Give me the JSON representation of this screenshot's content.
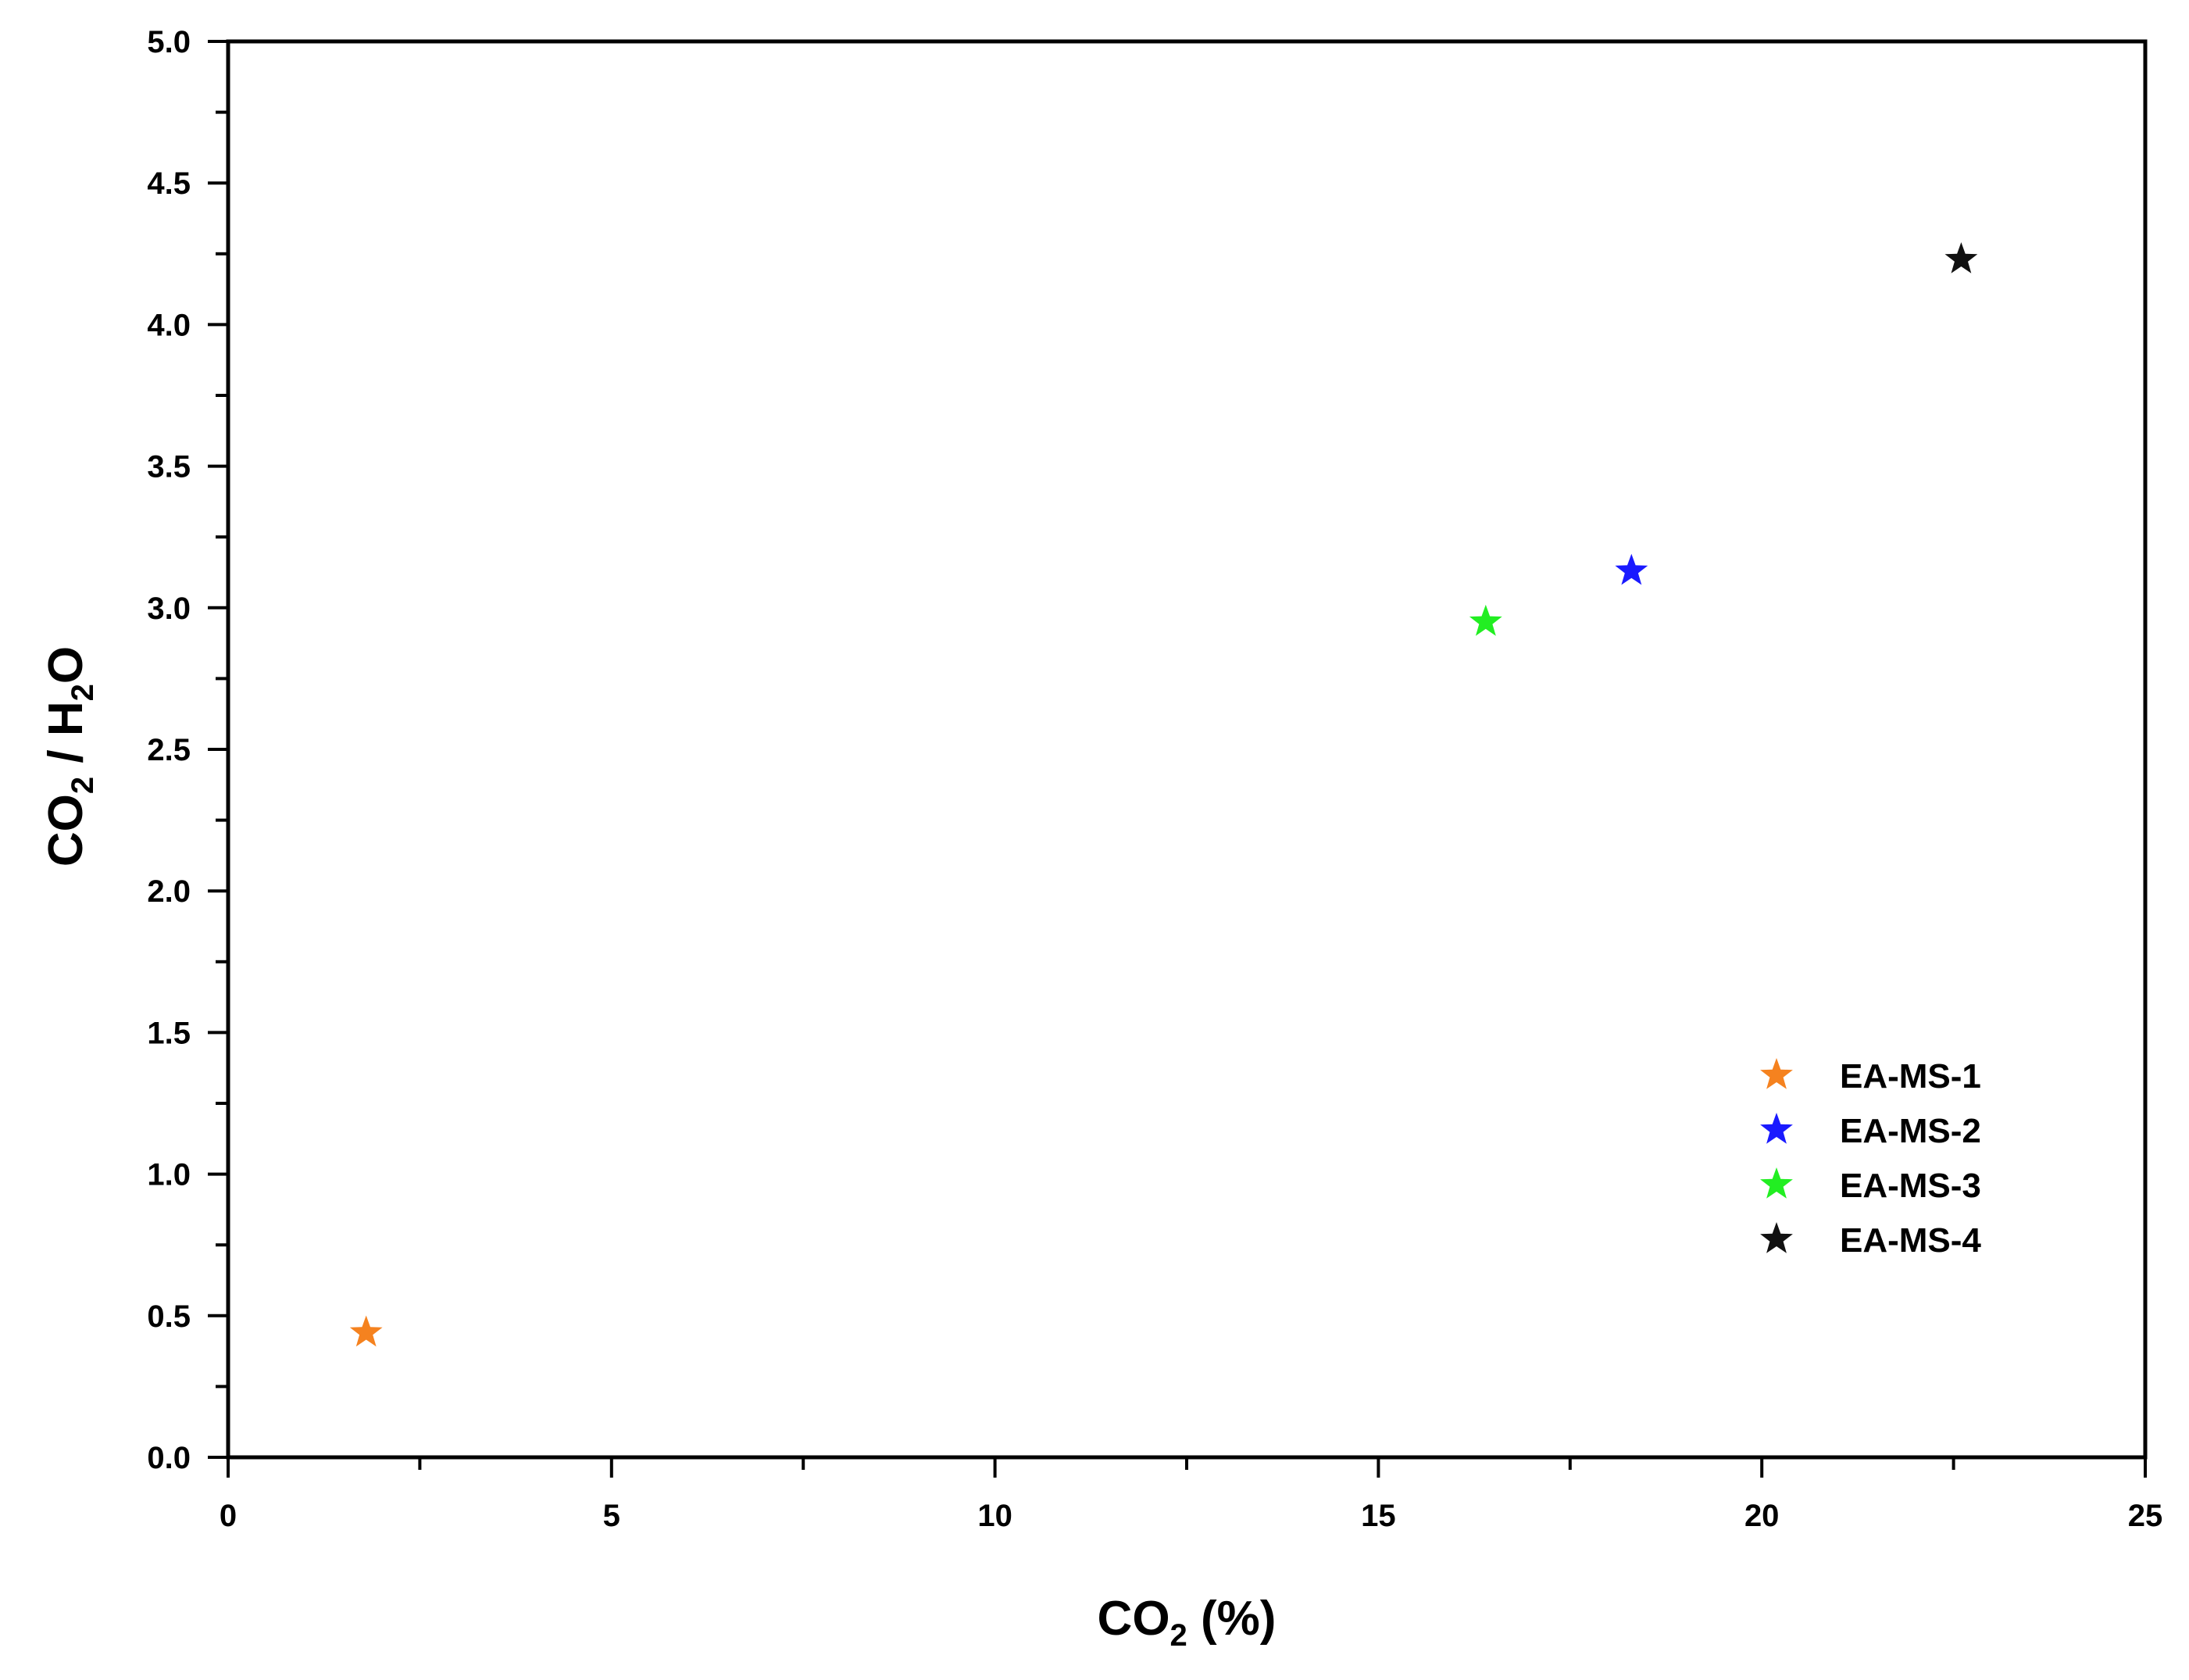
{
  "chart_data": {
    "type": "scatter",
    "xlabel": {
      "main": "CO",
      "sub": "2",
      "suffix": " (%)"
    },
    "ylabel": {
      "part1": "CO",
      "sub1": "2",
      "part2": " / H",
      "sub2": "2",
      "part3": "O"
    },
    "xlim": [
      0,
      25
    ],
    "ylim": [
      0,
      5
    ],
    "x_ticks": [
      "0",
      "5",
      "10",
      "15",
      "20",
      "25"
    ],
    "y_ticks": [
      "0.0",
      "0.5",
      "1.0",
      "1.5",
      "2.0",
      "2.5",
      "3.0",
      "3.5",
      "4.0",
      "4.5",
      "5.0"
    ],
    "grid": false,
    "legend_position": "lower-right",
    "marker": "star",
    "series": [
      {
        "name": "EA-MS-1",
        "color": "#f5821f",
        "x": 1.8,
        "y": 0.44
      },
      {
        "name": "EA-MS-2",
        "color": "#1a1aff",
        "x": 18.3,
        "y": 3.13
      },
      {
        "name": "EA-MS-3",
        "color": "#22ee22",
        "x": 16.4,
        "y": 2.95
      },
      {
        "name": "EA-MS-4",
        "color": "#111111",
        "x": 22.6,
        "y": 4.23
      }
    ]
  }
}
